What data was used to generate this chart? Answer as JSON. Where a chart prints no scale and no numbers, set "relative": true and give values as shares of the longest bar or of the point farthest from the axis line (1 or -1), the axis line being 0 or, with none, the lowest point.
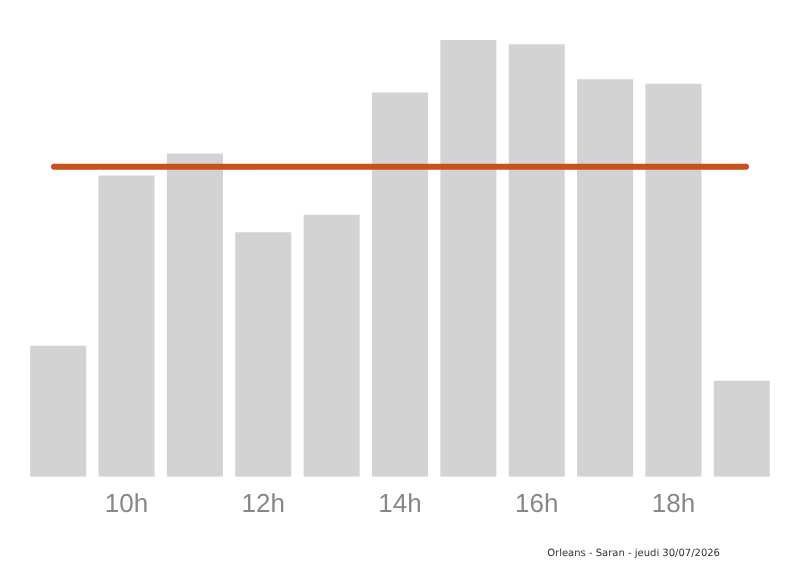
{
  "chart_data": {
    "type": "bar",
    "relative": true,
    "categories": [
      null,
      "10h",
      null,
      "12h",
      null,
      "14h",
      null,
      "16h",
      null,
      "18h",
      null
    ],
    "values": [
      0.3,
      0.69,
      0.74,
      0.56,
      0.6,
      0.88,
      1,
      0.99,
      0.91,
      0.9,
      0.22
    ],
    "color": "#d3d3d3",
    "ref_lines": [
      {
        "axis": "y",
        "value": 0.71,
        "color": "#c8501a"
      }
    ],
    "annotations": [
      "Orleans - Saran - jeudi 30/07/2026"
    ],
    "grid": false,
    "legend": false
  }
}
